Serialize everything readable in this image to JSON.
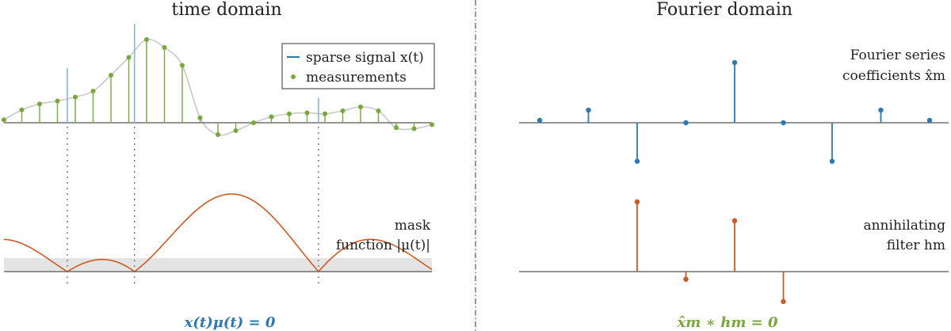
{
  "titles": {
    "left": "time domain",
    "right": "Fourier domain"
  },
  "legend": {
    "signal": "sparse signal x(t)",
    "measurements": "measurements"
  },
  "labels": {
    "mask_line1": "mask",
    "mask_line2": "function |μ(t)|",
    "coeff_line1": "Fourier series",
    "coeff_line2": "coefficients x̂m",
    "filter_line1": "annihilating",
    "filter_line2": "filter hm"
  },
  "equations": {
    "left": "x(t)μ(t) = 0",
    "right": "x̂m ∗ hm = 0"
  },
  "colors": {
    "blue": "#2a7ab8",
    "light_blue": "#7fb6dd",
    "green": "#79a83a",
    "orange": "#cf5a21",
    "axis": "#555555",
    "grey_band": "#e4e4e4",
    "curve": "#c8c8c8"
  },
  "sparse_signal": {
    "t": [
      0.148,
      0.305,
      0.735
    ],
    "amplitudes": [
      0.55,
      1.0,
      0.25
    ]
  },
  "measurements": {
    "values": [
      0.03,
      0.13,
      0.19,
      0.22,
      0.26,
      0.32,
      0.48,
      0.66,
      0.84,
      0.76,
      0.58,
      0.05,
      -0.12,
      -0.08,
      0.0,
      0.06,
      0.09,
      0.1,
      0.09,
      0.12,
      0.16,
      0.12,
      -0.05,
      -0.06,
      -0.02
    ]
  },
  "fourier_coefficients": {
    "m": [
      -4,
      -3,
      -2,
      -1,
      0,
      1,
      2,
      3,
      4
    ],
    "values": [
      0.04,
      0.21,
      -0.64,
      0.0,
      1.0,
      0.0,
      -0.64,
      0.21,
      0.04
    ]
  },
  "annihilating_filter": {
    "m": [
      0,
      1,
      2,
      3
    ],
    "values": [
      1.0,
      -0.11,
      0.73,
      -0.43
    ]
  }
}
